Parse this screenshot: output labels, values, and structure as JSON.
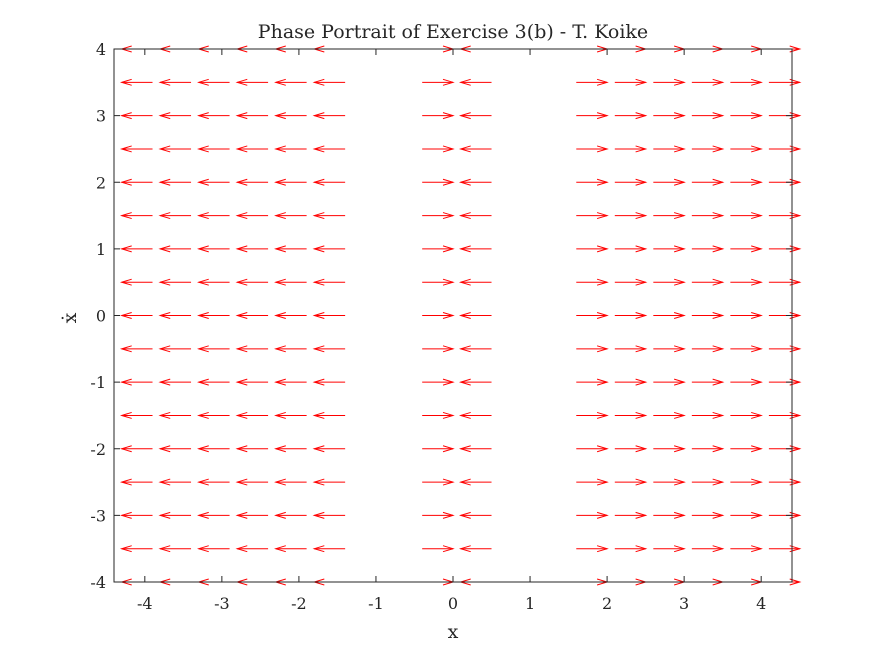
{
  "chart_data": {
    "type": "quiver",
    "title": "Phase Portrait of Exercise 3(b) - T. Koike",
    "xlabel": "x",
    "ylabel": "ẋ",
    "xlim": [
      -4.4,
      4.4
    ],
    "ylim": [
      -4,
      4
    ],
    "xticks": [
      -4,
      -3,
      -2,
      -1,
      0,
      1,
      2,
      3,
      4
    ],
    "yticks": [
      -4,
      -3,
      -2,
      -1,
      0,
      1,
      2,
      3,
      4
    ],
    "xtick_labels": [
      "-4",
      "-3",
      "-2",
      "-1",
      "0",
      "1",
      "2",
      "3",
      "4"
    ],
    "ytick_labels": [
      "-4",
      "-3",
      "-2",
      "-1",
      "0",
      "1",
      "2",
      "3",
      "4"
    ],
    "grid": false,
    "arrow_color": "#ff0000",
    "arrow_columns_x": [
      -4.1,
      -3.6,
      -3.1,
      -2.6,
      -2.1,
      -1.6,
      -0.2,
      0.3,
      1.8,
      2.3,
      2.8,
      3.3,
      3.8,
      4.3
    ],
    "arrow_direction_by_column": [
      -1,
      -1,
      -1,
      -1,
      -1,
      -1,
      1,
      -1,
      1,
      1,
      1,
      1,
      1,
      1
    ],
    "arrow_rows_y": [
      -4,
      -3.5,
      -3,
      -2.5,
      -2,
      -1.5,
      -1,
      -0.5,
      0,
      0.5,
      1,
      1.5,
      2,
      2.5,
      3,
      3.5,
      4
    ],
    "arrow_length_x": 0.4
  }
}
